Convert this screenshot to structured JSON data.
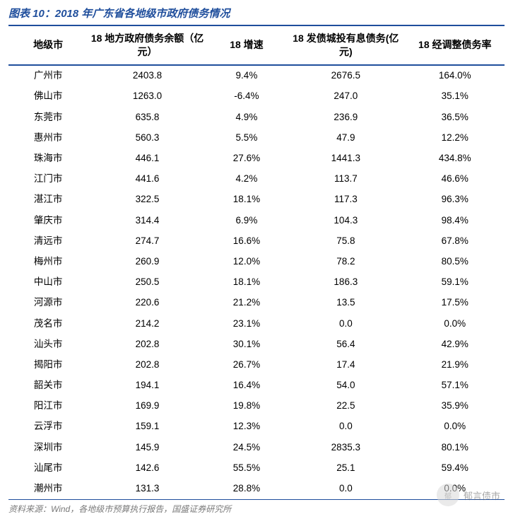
{
  "title": "图表 10：2018 年广东省各地级市政府债务情况",
  "columns": [
    "地级市",
    "18 地方政府债务余额（亿元）",
    "18 增速",
    "18 发债城投有息债务(亿元)",
    "18 经调整债务率"
  ],
  "col_widths_pct": [
    16,
    24,
    16,
    24,
    20
  ],
  "rows": [
    [
      "广州市",
      "2403.8",
      "9.4%",
      "2676.5",
      "164.0%"
    ],
    [
      "佛山市",
      "1263.0",
      "-6.4%",
      "247.0",
      "35.1%"
    ],
    [
      "东莞市",
      "635.8",
      "4.9%",
      "236.9",
      "36.5%"
    ],
    [
      "惠州市",
      "560.3",
      "5.5%",
      "47.9",
      "12.2%"
    ],
    [
      "珠海市",
      "446.1",
      "27.6%",
      "1441.3",
      "434.8%"
    ],
    [
      "江门市",
      "441.6",
      "4.2%",
      "113.7",
      "46.6%"
    ],
    [
      "湛江市",
      "322.5",
      "18.1%",
      "117.3",
      "96.3%"
    ],
    [
      "肇庆市",
      "314.4",
      "6.9%",
      "104.3",
      "98.4%"
    ],
    [
      "清远市",
      "274.7",
      "16.6%",
      "75.8",
      "67.8%"
    ],
    [
      "梅州市",
      "260.9",
      "12.0%",
      "78.2",
      "80.5%"
    ],
    [
      "中山市",
      "250.5",
      "18.1%",
      "186.3",
      "59.1%"
    ],
    [
      "河源市",
      "220.6",
      "21.2%",
      "13.5",
      "17.5%"
    ],
    [
      "茂名市",
      "214.2",
      "23.1%",
      "0.0",
      "0.0%"
    ],
    [
      "汕头市",
      "202.8",
      "30.1%",
      "56.4",
      "42.9%"
    ],
    [
      "揭阳市",
      "202.8",
      "26.7%",
      "17.4",
      "21.9%"
    ],
    [
      "韶关市",
      "194.1",
      "16.4%",
      "54.0",
      "57.1%"
    ],
    [
      "阳江市",
      "169.9",
      "19.8%",
      "22.5",
      "35.9%"
    ],
    [
      "云浮市",
      "159.1",
      "12.3%",
      "0.0",
      "0.0%"
    ],
    [
      "深圳市",
      "145.9",
      "24.5%",
      "2835.3",
      "80.1%"
    ],
    [
      "汕尾市",
      "142.6",
      "55.5%",
      "25.1",
      "59.4%"
    ],
    [
      "潮州市",
      "131.3",
      "28.8%",
      "0.0",
      "0.0%"
    ]
  ],
  "source": "资料来源：Wind，各地级市预算执行报告，国盛证券研究所",
  "watermark_text": "郁言债市",
  "colors": {
    "title": "#1f4e9c",
    "border": "#1f4e9c",
    "text": "#000000",
    "source": "#7a7a7a",
    "background": "#ffffff"
  }
}
